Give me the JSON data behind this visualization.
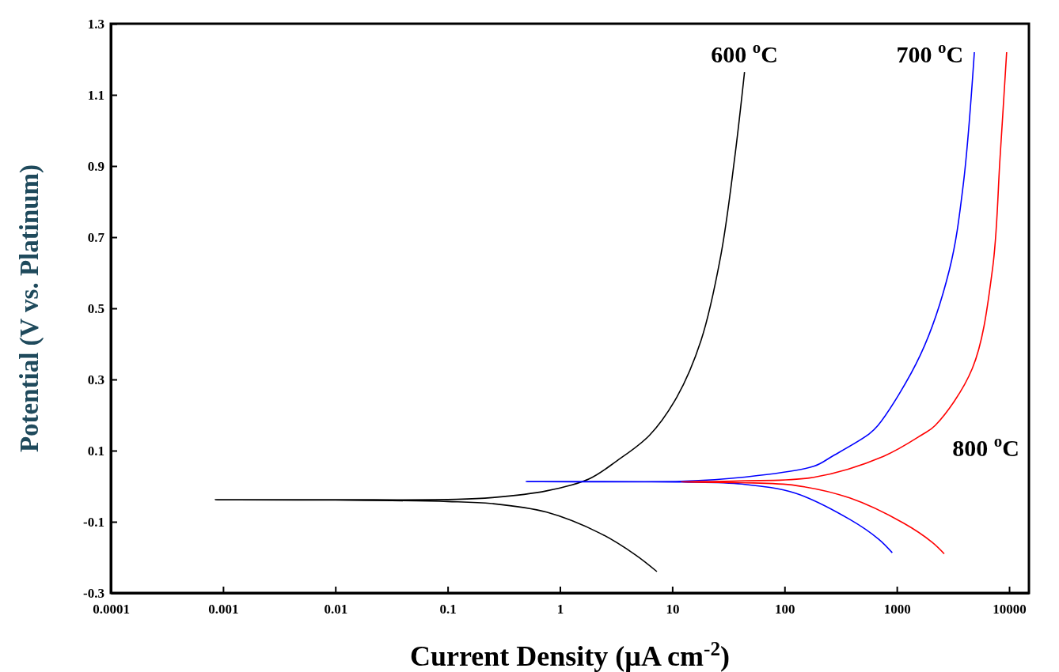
{
  "chart_data": {
    "type": "line",
    "xlabel": "Current Density (µA cm$^{-2}$)",
    "ylabel": "Potential (V vs. Platinum)",
    "log": "x",
    "xlim": [
      0.0001,
      15000
    ],
    "xticks": [
      0.0001,
      0.001,
      0.01,
      0.1,
      1,
      10,
      100,
      1000,
      10000
    ],
    "ylim": [
      -0.3,
      1.3
    ],
    "yticks": [
      -0.3,
      -0.1,
      0.1,
      0.3,
      0.5,
      0.7,
      0.9,
      1.1,
      1.3
    ],
    "marker": "none",
    "line_style": "solid",
    "series": [
      {
        "name": "600 $^{o}$C",
        "color": "#000000",
        "x": [
          7.3,
          4.7,
          2.3,
          0.76,
          0.25,
          0.1,
          0.01,
          0.00085,
          0.01,
          0.12,
          0.25,
          0.76,
          1.8,
          3.2,
          6.3,
          11,
          18,
          27,
          36,
          44
        ],
        "values": [
          -0.24,
          -0.193,
          -0.133,
          -0.073,
          -0.049,
          -0.043,
          -0.039,
          -0.038,
          -0.038,
          -0.037,
          -0.032,
          -0.013,
          0.02,
          0.071,
          0.144,
          0.251,
          0.409,
          0.647,
          0.924,
          1.164
        ]
      },
      {
        "name": "700 $^{o}$C",
        "color": "#0000ff",
        "x": [
          910,
          690,
          380,
          126,
          42,
          12,
          0.5,
          12,
          42,
          182,
          265,
          550,
          680,
          1620,
          2940,
          3900,
          4900
        ],
        "values": [
          -0.187,
          -0.149,
          -0.093,
          -0.02,
          0.006,
          0.012,
          0.013,
          0.014,
          0.025,
          0.056,
          0.084,
          0.144,
          0.171,
          0.369,
          0.609,
          0.847,
          1.22
        ]
      },
      {
        "name": "800 $^{o}$C",
        "color": "#ff0000",
        "x": [
          2640,
          2070,
          1150,
          380,
          126,
          40,
          12,
          40,
          182,
          760,
          1660,
          2200,
          4700,
          7100,
          8300,
          9500
        ],
        "values": [
          -0.19,
          -0.158,
          -0.104,
          -0.033,
          0.002,
          0.01,
          0.012,
          0.015,
          0.025,
          0.084,
          0.144,
          0.171,
          0.331,
          0.609,
          0.924,
          1.22
        ]
      }
    ]
  }
}
